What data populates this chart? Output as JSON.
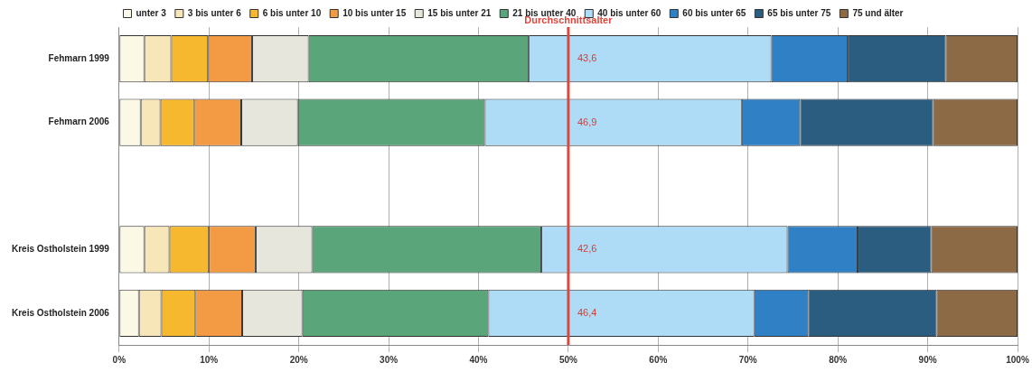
{
  "chart_data": {
    "type": "bar",
    "orientation": "horizontal",
    "stacked": true,
    "legend": "top",
    "grid": "x",
    "categories": [
      "Fehmarn 1999",
      "Fehmarn 2006",
      null,
      "Kreis Ostholstein 1999",
      "Kreis Ostholstein 2006"
    ],
    "xlim": [
      0,
      100
    ],
    "xticks": [
      {
        "value": 0,
        "label": "0%"
      },
      {
        "value": 10,
        "label": "10%"
      },
      {
        "value": 20,
        "label": "20%"
      },
      {
        "value": 30,
        "label": "30%"
      },
      {
        "value": 40,
        "label": "40%"
      },
      {
        "value": 50,
        "label": "50%"
      },
      {
        "value": 60,
        "label": "60%"
      },
      {
        "value": 70,
        "label": "70%"
      },
      {
        "value": 80,
        "label": "80%"
      },
      {
        "value": 90,
        "label": "90%"
      },
      {
        "value": 100,
        "label": "100%"
      }
    ],
    "series": [
      {
        "name": "unter 3",
        "color": "#fbf8e6",
        "values": [
          2.8,
          2.4,
          null,
          2.8,
          2.2
        ]
      },
      {
        "name": "3 bis unter 6",
        "color": "#f7e6b8",
        "values": [
          3.0,
          2.2,
          null,
          2.8,
          2.5
        ]
      },
      {
        "name": "6 bis unter 10",
        "color": "#f5b82e",
        "values": [
          4.1,
          3.8,
          null,
          4.4,
          3.8
        ]
      },
      {
        "name": "10 bis unter 15",
        "color": "#f39a45",
        "values": [
          4.9,
          5.2,
          null,
          5.2,
          5.2
        ]
      },
      {
        "name": "15 bis unter 21",
        "color": "#e6e6dc",
        "values": [
          6.3,
          6.3,
          null,
          6.3,
          6.7
        ]
      },
      {
        "name": "21 bis unter 40",
        "color": "#5aa57a",
        "values": [
          24.5,
          20.8,
          null,
          25.5,
          20.7
        ]
      },
      {
        "name": "40 bis unter 60",
        "color": "#aedcf7",
        "values": [
          27.0,
          28.6,
          null,
          27.4,
          29.6
        ]
      },
      {
        "name": "60 bis unter 65",
        "color": "#2f80c5",
        "values": [
          8.5,
          6.5,
          null,
          7.8,
          6.0
        ]
      },
      {
        "name": "65 bis unter 75",
        "color": "#2a5d80",
        "values": [
          10.9,
          14.8,
          null,
          8.2,
          14.3
        ]
      },
      {
        "name": "75 und älter",
        "color": "#8b6a45",
        "values": [
          8.0,
          9.4,
          null,
          9.6,
          9.0
        ]
      }
    ],
    "ref_lines": [
      {
        "axis": "x",
        "value": 50,
        "label": "Durchschnittsalter",
        "color": "#e0463c"
      }
    ],
    "annotations": [
      {
        "text": "43,6",
        "y": "Fehmarn 1999"
      },
      {
        "text": "46,9",
        "y": "Fehmarn 2006"
      },
      {
        "text": "42,6",
        "y": "Kreis Ostholstein 1999"
      },
      {
        "text": "46,4",
        "y": "Kreis Ostholstein 2006"
      }
    ]
  }
}
